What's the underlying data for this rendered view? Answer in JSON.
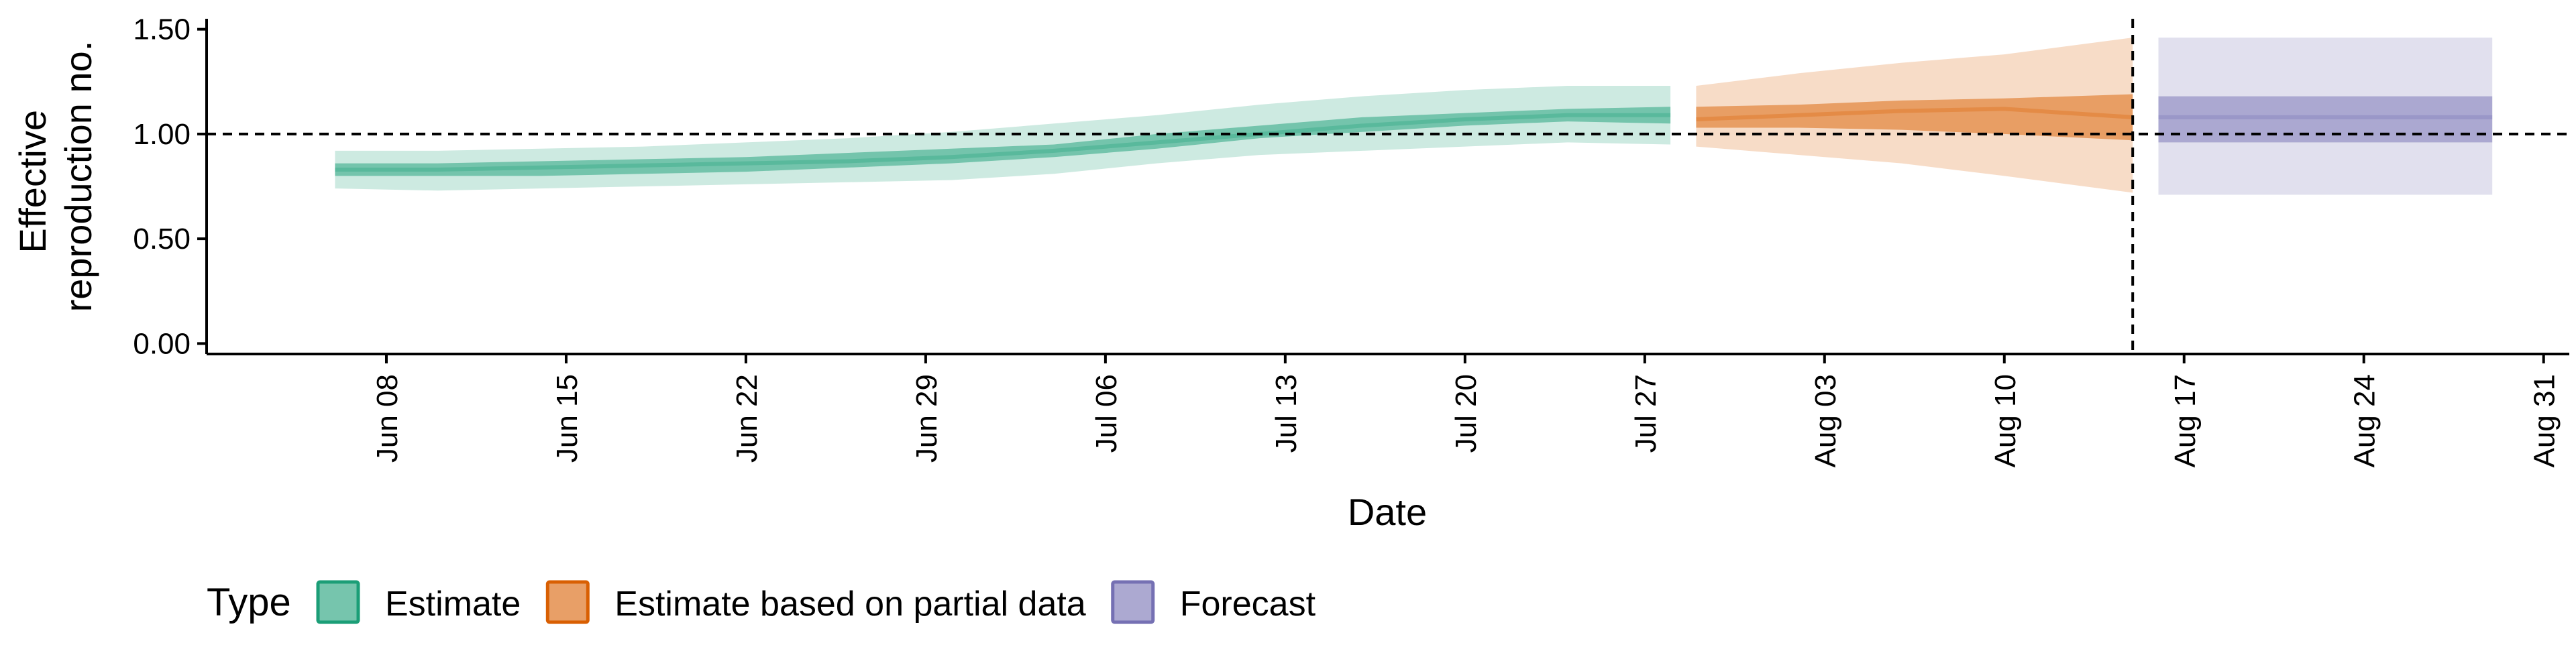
{
  "chart_data": {
    "type": "area",
    "xlabel": "Date",
    "ylabel": [
      "Effective",
      "reproduction no."
    ],
    "ylim": [
      -0.05,
      1.55
    ],
    "xlim": [
      "2020-06-01",
      "2020-09-01"
    ],
    "yticks": [
      0,
      0.5,
      1,
      1.5
    ],
    "ytick_labels": [
      "0.00",
      "0.50",
      "1.00",
      "1.50"
    ],
    "xticks": [
      "2020-06-08",
      "2020-06-15",
      "2020-06-22",
      "2020-06-29",
      "2020-07-06",
      "2020-07-13",
      "2020-07-20",
      "2020-07-27",
      "2020-08-03",
      "2020-08-10",
      "2020-08-17",
      "2020-08-24",
      "2020-08-31"
    ],
    "xtick_labels": [
      "Jun 08",
      "Jun 15",
      "Jun 22",
      "Jun 29",
      "Jul 06",
      "Jul 13",
      "Jul 20",
      "Jul 27",
      "Aug 03",
      "Aug 10",
      "Aug 17",
      "Aug 24",
      "Aug 31"
    ],
    "reference_line_y": 1.0,
    "reference_line_x": "2020-08-15",
    "grid": false,
    "legend": {
      "title": "Type",
      "position": "bottom",
      "entries": [
        {
          "label": "Estimate",
          "fill": "#1b9e77",
          "border": "#1b9e77"
        },
        {
          "label": "Estimate based on partial data",
          "fill": "#d95f02",
          "border": "#d95f02"
        },
        {
          "label": "Forecast",
          "fill": "#7570b3",
          "border": "#7570b3"
        }
      ]
    },
    "series": [
      {
        "name": "Estimate",
        "color": "#1b9e77",
        "x": [
          "2020-06-06",
          "2020-06-10",
          "2020-06-14",
          "2020-06-18",
          "2020-06-22",
          "2020-06-26",
          "2020-06-30",
          "2020-07-04",
          "2020-07-08",
          "2020-07-12",
          "2020-07-16",
          "2020-07-20",
          "2020-07-24",
          "2020-07-28"
        ],
        "median": [
          0.83,
          0.83,
          0.84,
          0.85,
          0.86,
          0.87,
          0.89,
          0.92,
          0.96,
          1.0,
          1.04,
          1.07,
          1.09,
          1.09
        ],
        "lower_50": [
          0.8,
          0.8,
          0.8,
          0.81,
          0.82,
          0.84,
          0.86,
          0.89,
          0.93,
          0.98,
          1.01,
          1.04,
          1.06,
          1.05
        ],
        "upper_50": [
          0.86,
          0.86,
          0.87,
          0.88,
          0.89,
          0.91,
          0.93,
          0.95,
          1.0,
          1.04,
          1.08,
          1.1,
          1.12,
          1.13
        ],
        "lower_90": [
          0.74,
          0.73,
          0.74,
          0.75,
          0.76,
          0.77,
          0.78,
          0.81,
          0.86,
          0.9,
          0.92,
          0.94,
          0.96,
          0.95
        ],
        "upper_90": [
          0.92,
          0.92,
          0.93,
          0.94,
          0.96,
          0.98,
          1.01,
          1.05,
          1.09,
          1.14,
          1.18,
          1.21,
          1.23,
          1.23
        ]
      },
      {
        "name": "Estimate based on partial data",
        "color": "#d95f02",
        "x": [
          "2020-07-29",
          "2020-08-02",
          "2020-08-06",
          "2020-08-10",
          "2020-08-15"
        ],
        "median": [
          1.07,
          1.09,
          1.11,
          1.12,
          1.08
        ],
        "lower_50": [
          1.03,
          1.03,
          1.02,
          1.0,
          0.97
        ],
        "upper_50": [
          1.13,
          1.14,
          1.16,
          1.17,
          1.19
        ],
        "lower_90": [
          0.94,
          0.9,
          0.86,
          0.8,
          0.72
        ],
        "upper_90": [
          1.23,
          1.29,
          1.34,
          1.38,
          1.46
        ]
      },
      {
        "name": "Forecast",
        "color": "#7570b3",
        "x": [
          "2020-08-16",
          "2020-08-29"
        ],
        "median": [
          1.08,
          1.08
        ],
        "lower_50": [
          0.96,
          0.96
        ],
        "upper_50": [
          1.18,
          1.18
        ],
        "lower_90": [
          0.71,
          0.71
        ],
        "upper_90": [
          1.46,
          1.46
        ]
      }
    ]
  }
}
